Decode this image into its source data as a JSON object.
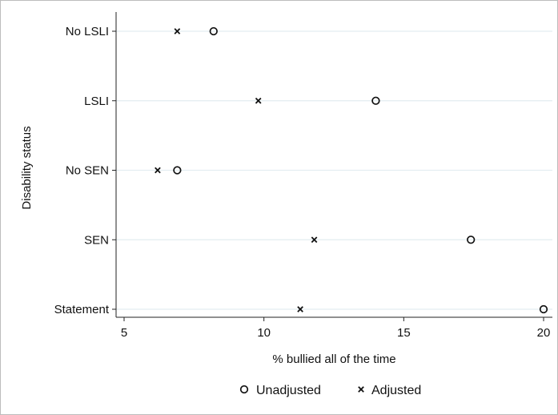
{
  "chart_data": {
    "type": "scatter",
    "orientation": "horizontal-dot",
    "xlabel": "% bullied all of the time",
    "ylabel": "Disability status",
    "xlim": [
      5,
      20
    ],
    "xticks": [
      5,
      10,
      15,
      20
    ],
    "categories": [
      "No LSLI",
      "LSLI",
      "No SEN",
      "SEN",
      "Statement"
    ],
    "grid": true,
    "legend": "bottom",
    "series": [
      {
        "name": "Unadjusted",
        "marker": "circle",
        "values": [
          8.2,
          14.0,
          6.9,
          17.4,
          20.0
        ]
      },
      {
        "name": "Adjusted",
        "marker": "x",
        "values": [
          6.9,
          9.8,
          6.2,
          11.8,
          11.3
        ]
      }
    ],
    "colors": {
      "grid": "#e3edf1",
      "axis": "#222222",
      "marker": "#111111"
    }
  }
}
